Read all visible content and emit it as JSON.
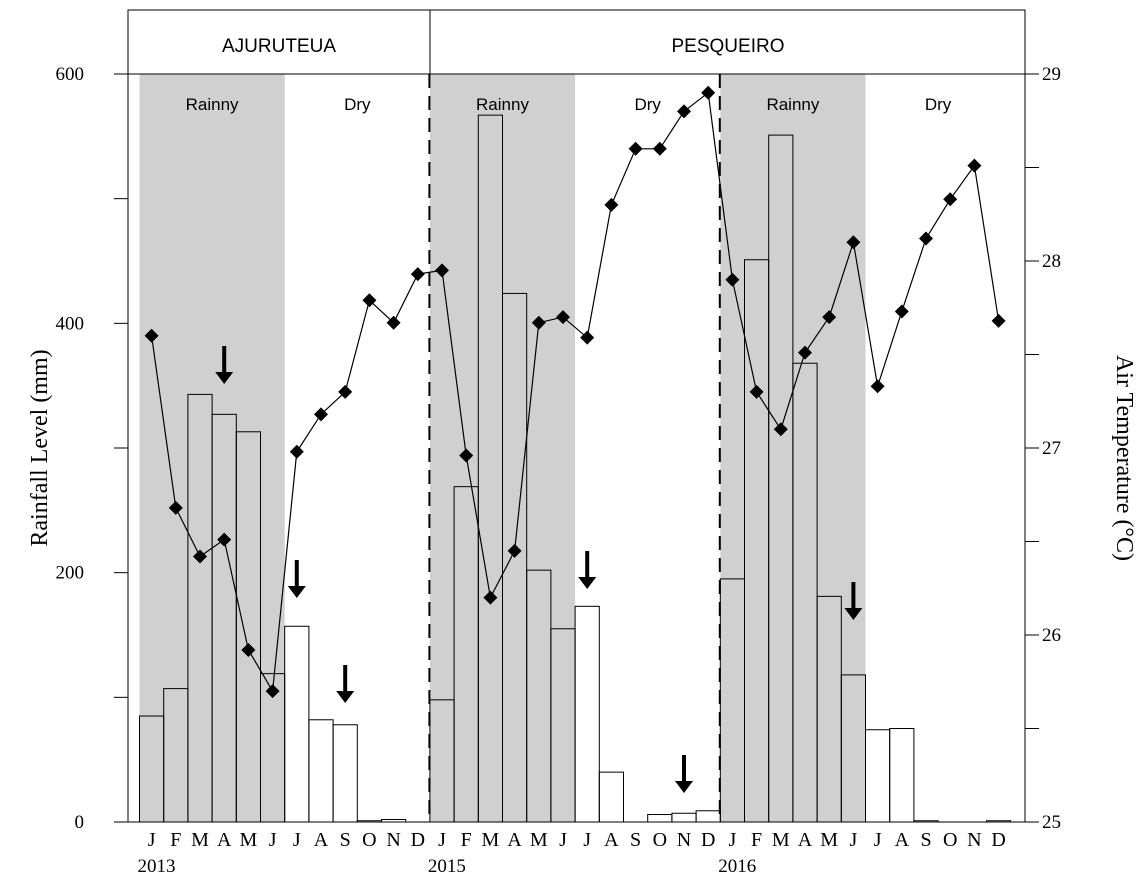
{
  "chart_data": {
    "type": "bar",
    "sites": [
      {
        "name": "AJURUTEUA",
        "start": 0,
        "end": 12
      },
      {
        "name": "PESQUEIRO",
        "start": 12,
        "end": 36
      }
    ],
    "seasons": [
      {
        "label": "Rainny",
        "start": 0,
        "end": 6,
        "shaded": true
      },
      {
        "label": "Dry",
        "start": 6,
        "end": 12,
        "shaded": false
      },
      {
        "label": "Rainny",
        "start": 12,
        "end": 18,
        "shaded": true
      },
      {
        "label": "Dry",
        "start": 18,
        "end": 24,
        "shaded": false
      },
      {
        "label": "Rainny",
        "start": 24,
        "end": 30,
        "shaded": true
      },
      {
        "label": "Dry",
        "start": 30,
        "end": 36,
        "shaded": false
      }
    ],
    "month_labels": [
      "J",
      "F",
      "M",
      "A",
      "M",
      "J",
      "J",
      "A",
      "S",
      "O",
      "N",
      "D",
      "J",
      "F",
      "M",
      "A",
      "M",
      "J",
      "J",
      "A",
      "S",
      "O",
      "N",
      "D",
      "J",
      "F",
      "M",
      "A",
      "M",
      "J",
      "J",
      "A",
      "S",
      "O",
      "N",
      "D"
    ],
    "year_labels": [
      {
        "label": "2013",
        "index": 0
      },
      {
        "label": "2015",
        "index": 12
      },
      {
        "label": "2016",
        "index": 24
      }
    ],
    "rainfall_mm": [
      85,
      107,
      343,
      327,
      313,
      119,
      157,
      82,
      78,
      1,
      2,
      0,
      98,
      269,
      567,
      424,
      202,
      155,
      173,
      40,
      0,
      6,
      7,
      9,
      195,
      451,
      551,
      368,
      181,
      118,
      74,
      75,
      1,
      0,
      0,
      1
    ],
    "air_temperature_c": [
      27.6,
      26.68,
      26.42,
      26.51,
      25.92,
      25.7,
      26.98,
      27.18,
      27.3,
      27.79,
      27.67,
      27.93,
      27.95,
      26.96,
      26.2,
      26.45,
      27.67,
      27.7,
      27.59,
      28.3,
      28.6,
      28.6,
      28.8,
      28.9,
      27.9,
      27.3,
      27.1,
      27.51,
      27.7,
      28.1,
      27.33,
      27.73,
      28.12,
      28.33,
      28.51,
      27.68
    ],
    "sampling_months": [
      3,
      6,
      8,
      18,
      22,
      29
    ],
    "y_left": {
      "label": "Rainfall Level (mm)",
      "ylim": [
        0,
        600
      ],
      "ticks": [
        "0",
        "200",
        "400",
        "600"
      ]
    },
    "y_right": {
      "label": "Air Temperature (°C)",
      "ylim": [
        25,
        29
      ],
      "ticks": [
        "25",
        "26",
        "27",
        "28",
        "29"
      ]
    },
    "colors": {
      "shade": "#d0d0d0",
      "bar_fill": "#ffffff",
      "stroke": "#000000",
      "marker": "#000000"
    }
  }
}
